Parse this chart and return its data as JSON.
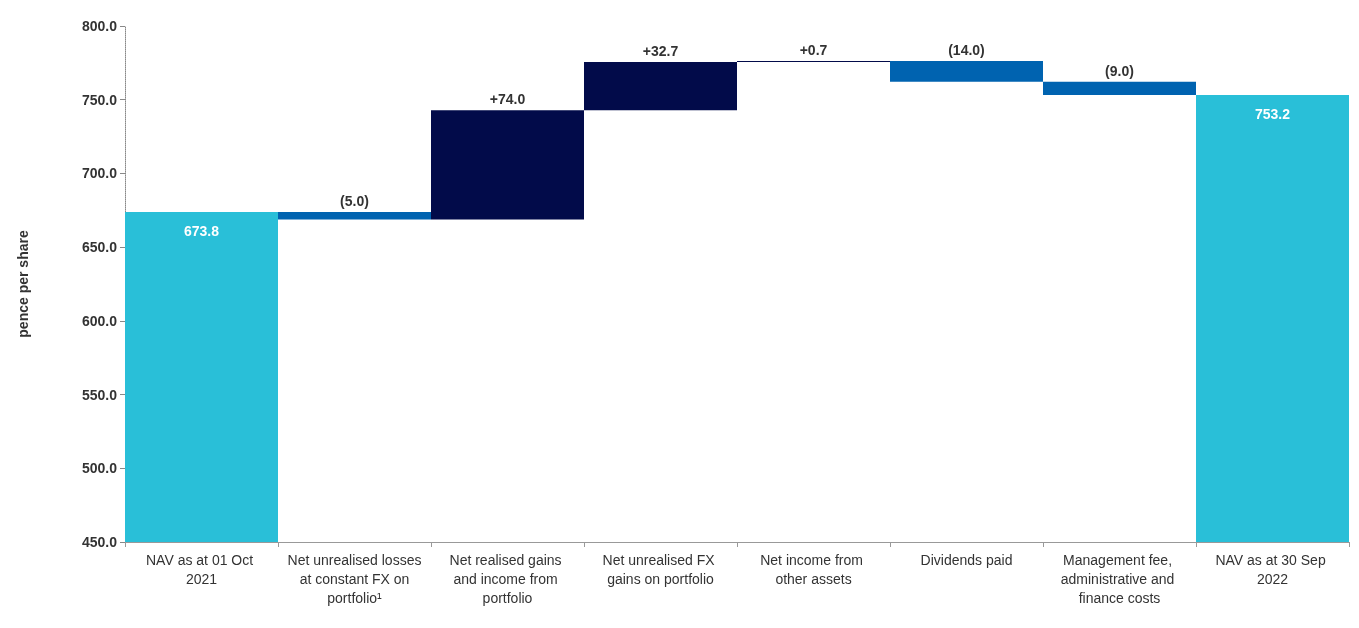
{
  "chart_data": {
    "type": "bar",
    "ylabel": "pence per share",
    "categories": [
      "NAV as at 01 Oct 2021",
      "Net unrealised losses at constant FX on portfolio¹",
      "Net realised gains and income from portfolio",
      "Net unrealised FX gains on portfolio",
      "Net income from other assets",
      "Dividends paid",
      "Management fee, administrative and finance costs",
      "NAV as at 30 Sep 2022"
    ],
    "base": [
      450,
      668.8,
      668.8,
      742.8,
      775.5,
      762.2,
      753.2,
      450
    ],
    "values": [
      223.8,
      5.0,
      74.0,
      32.7,
      0.7,
      14.0,
      9.0,
      303.2
    ],
    "value_labels": [
      "673.8",
      "(5.0)",
      "+74.0",
      "+32.7",
      "+0.7",
      "(14.0)",
      "(9.0)",
      "753.2"
    ],
    "colors": [
      "#29bfd8",
      "#0063b0",
      "#020b4a",
      "#020b4a",
      "#020b4a",
      "#0063b0",
      "#0063b0",
      "#29bfd8"
    ],
    "ylim": [
      450,
      800
    ],
    "yticks": [
      {
        "value": 450,
        "label": "450.0"
      },
      {
        "value": 500,
        "label": "500.0"
      },
      {
        "value": 550,
        "label": "550.0"
      },
      {
        "value": 600,
        "label": "600.0"
      },
      {
        "value": 650,
        "label": "650.0"
      },
      {
        "value": 700,
        "label": "700.0"
      },
      {
        "value": 750,
        "label": "750.0"
      },
      {
        "value": 800,
        "label": "800.0"
      }
    ],
    "grid": false
  }
}
